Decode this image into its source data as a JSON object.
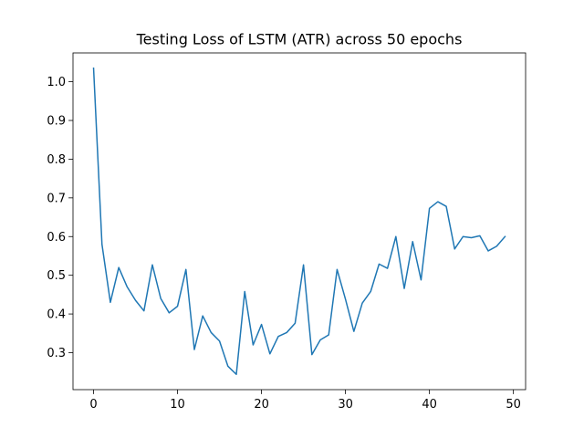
{
  "chart_data": {
    "type": "line",
    "title": "Testing Loss of LSTM (ATR) across 50 epochs",
    "xlabel": "",
    "ylabel": "",
    "xlim": [
      -2.45,
      51.45
    ],
    "ylim": [
      0.2045,
      1.0745
    ],
    "xticks": [
      0,
      10,
      20,
      30,
      40,
      50
    ],
    "yticks": [
      0.3,
      0.4,
      0.5,
      0.6,
      0.7,
      0.8,
      0.9,
      1.0
    ],
    "xtick_labels": [
      "0",
      "10",
      "20",
      "30",
      "40",
      "50"
    ],
    "ytick_labels": [
      "0.3",
      "0.4",
      "0.5",
      "0.6",
      "0.7",
      "0.8",
      "0.9",
      "1.0"
    ],
    "grid": false,
    "line_color": "#1f77b4",
    "series": [
      {
        "x": [
          0,
          1,
          2,
          3,
          4,
          5,
          6,
          7,
          8,
          9,
          10,
          11,
          12,
          13,
          14,
          15,
          16,
          17,
          18,
          19,
          20,
          21,
          22,
          23,
          24,
          25,
          26,
          27,
          28,
          29,
          30,
          31,
          32,
          33,
          34,
          35,
          36,
          37,
          38,
          39,
          40,
          41,
          42,
          43,
          44,
          45,
          46,
          47,
          48,
          49
        ],
        "values": [
          1.035,
          0.58,
          0.43,
          0.52,
          0.47,
          0.435,
          0.408,
          0.527,
          0.44,
          0.403,
          0.42,
          0.515,
          0.308,
          0.395,
          0.352,
          0.33,
          0.265,
          0.244,
          0.458,
          0.32,
          0.373,
          0.297,
          0.342,
          0.352,
          0.376,
          0.527,
          0.295,
          0.333,
          0.346,
          0.515,
          0.438,
          0.355,
          0.428,
          0.458,
          0.529,
          0.518,
          0.6,
          0.466,
          0.587,
          0.488,
          0.673,
          0.69,
          0.678,
          0.568,
          0.6,
          0.597,
          0.602,
          0.563,
          0.575,
          0.6
        ]
      }
    ]
  }
}
